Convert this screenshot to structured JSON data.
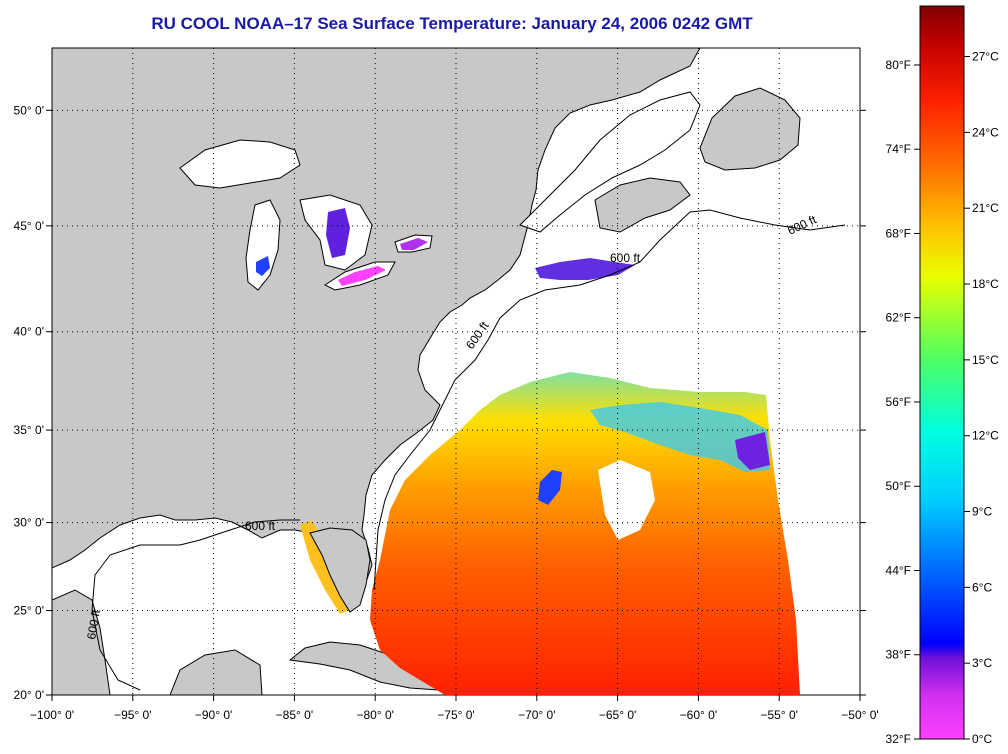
{
  "title": "RU COOL  NOAA–17  Sea Surface Temperature:  January 24, 2006 0242 GMT",
  "map": {
    "lon_range": [
      -100,
      -50
    ],
    "lat_range": [
      20,
      52.5
    ],
    "lon_ticks": [
      "−100° 0'",
      "−95° 0'",
      "−90° 0'",
      "−85° 0'",
      "−80° 0'",
      "−75° 0'",
      "−70° 0'",
      "−65° 0'",
      "−60° 0'",
      "−55° 0'",
      "−50° 0'"
    ],
    "lat_ticks": [
      "20° 0'",
      "25° 0'",
      "30° 0'",
      "35° 0'",
      "40° 0'",
      "45° 0'",
      "50° 0'"
    ],
    "contour_label": "600 ft",
    "land_color": "#c8c8c8",
    "ocean_nodata_color": "#ffffff",
    "grid": "dotted"
  },
  "colorbar": {
    "fahrenheit_labels": [
      "32°F",
      "38°F",
      "44°F",
      "50°F",
      "56°F",
      "62°F",
      "68°F",
      "74°F",
      "80°F"
    ],
    "celsius_labels": [
      "0°C",
      "3°C",
      "6°C",
      "9°C",
      "12°C",
      "15°C",
      "18°C",
      "21°C",
      "24°C",
      "27°C"
    ],
    "range_c": [
      0,
      29
    ],
    "colors": [
      "#ff40ff",
      "#a020e0",
      "#0000ff",
      "#0090ff",
      "#00ffff",
      "#40ff80",
      "#ffff00",
      "#ffa000",
      "#ff2000",
      "#b00000",
      "#800000"
    ]
  }
}
